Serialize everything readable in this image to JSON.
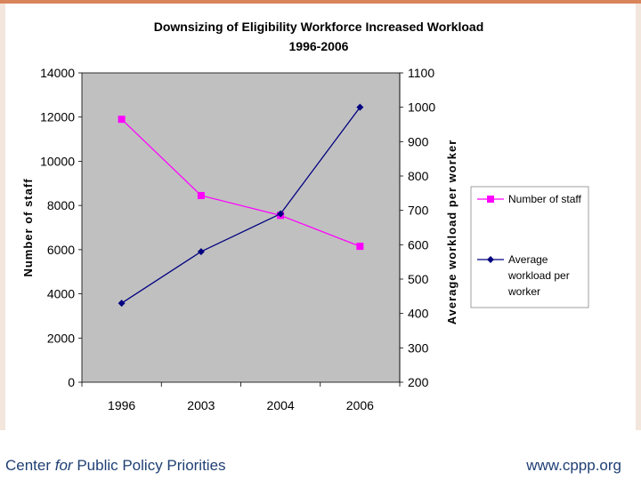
{
  "colors": {
    "top_bar": "#d9845b",
    "plot_bg": "#c0c0c0",
    "staff": "#ff00ff",
    "workload": "#000080",
    "footer_text": "#1f3f73"
  },
  "footer": {
    "org_pre": "Center ",
    "org_italic": "for",
    "org_post": " Public Policy Priorities",
    "url": "www.cppp.org"
  },
  "chart_data": {
    "type": "line",
    "title": "Downsizing of Eligibility Workforce Increased Workload",
    "subtitle": "1996-2006",
    "categories": [
      "1996",
      "2003",
      "2004",
      "2006"
    ],
    "y_left": {
      "label": "Number of staff",
      "range": [
        0,
        14000
      ],
      "ticks": [
        "0",
        "2000",
        "4000",
        "6000",
        "8000",
        "10000",
        "12000",
        "14000"
      ]
    },
    "y_right": {
      "label": "Average workload per worker",
      "range": [
        200,
        1100
      ],
      "ticks": [
        "200",
        "300",
        "400",
        "500",
        "600",
        "700",
        "800",
        "900",
        "1000",
        "1100"
      ]
    },
    "series": [
      {
        "name": "Number of staff",
        "axis": "left",
        "marker": "square",
        "values": [
          11900,
          8450,
          7550,
          6150
        ]
      },
      {
        "name": "Average workload per worker",
        "legend_lines": [
          "Average",
          "workload per",
          "worker"
        ],
        "axis": "right",
        "marker": "diamond",
        "values": [
          430,
          580,
          690,
          1000
        ]
      }
    ],
    "grid": false,
    "legend_position": "right"
  }
}
